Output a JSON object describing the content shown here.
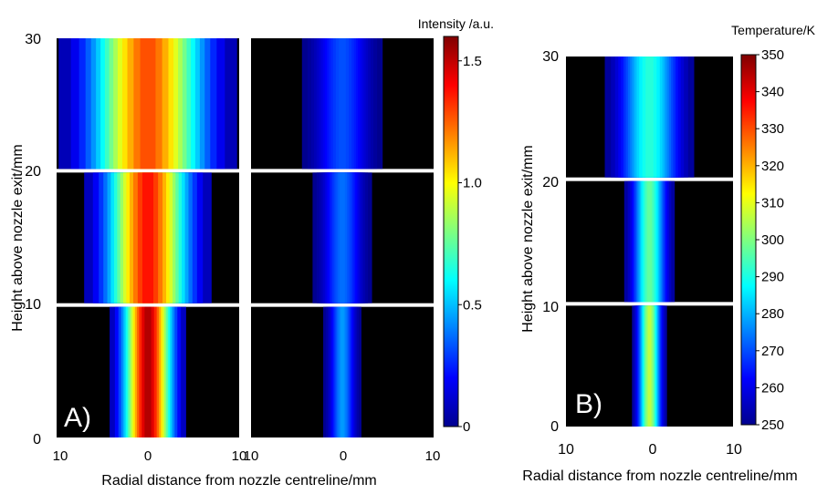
{
  "chart_data": [
    {
      "type": "heatmap",
      "panel_label": "A)",
      "colorbar_title": "Intensity /a.u.",
      "colorbar_ticks": [
        "0",
        "0.5",
        "1.0",
        "1.5"
      ],
      "colorbar_range": [
        0,
        1.6
      ],
      "colormap": "jet",
      "ylabel": "Height above nozzle exit/mm",
      "xlabel": "Radial distance from nozzle centreline/mm",
      "y_ticks": [
        "0",
        "10",
        "20",
        "30"
      ],
      "ylim": [
        0,
        30
      ],
      "y_segments": [
        [
          0,
          10
        ],
        [
          10,
          20
        ],
        [
          20,
          30
        ]
      ],
      "subpanels": [
        {
          "x_ticks": [
            "10",
            "0",
            "10"
          ],
          "xlim": [
            -10,
            10
          ],
          "peak_intensity": [
            1.55,
            1.4,
            1.3
          ],
          "half_width_mm": [
            1.8,
            3.0,
            4.2
          ]
        },
        {
          "x_ticks": [
            "10",
            "0",
            "10"
          ],
          "xlim": [
            -10,
            10
          ],
          "peak_intensity": [
            0.45,
            0.38,
            0.33
          ],
          "half_width_mm": [
            0.9,
            1.4,
            1.9
          ]
        }
      ]
    },
    {
      "type": "heatmap",
      "panel_label": "B)",
      "colorbar_title": "Temperature/K",
      "colorbar_ticks": [
        "250",
        "260",
        "270",
        "280",
        "290",
        "300",
        "310",
        "320",
        "330",
        "340",
        "350"
      ],
      "colorbar_range": [
        250,
        350
      ],
      "colormap": "jet",
      "ylabel": "Height above nozzle exit/mm",
      "xlabel": "Radial distance from nozzle centreline/mm",
      "x_ticks": [
        "10",
        "0",
        "10"
      ],
      "xlim": [
        -10,
        10
      ],
      "y_ticks": [
        "0",
        "10",
        "20",
        "30"
      ],
      "ylim": [
        0,
        30
      ],
      "y_segments": [
        [
          0,
          10
        ],
        [
          10,
          20
        ],
        [
          20,
          30
        ]
      ],
      "core_temperature_K": [
        307,
        298,
        292
      ],
      "half_width_mm": [
        0.9,
        1.3,
        2.3
      ]
    }
  ]
}
